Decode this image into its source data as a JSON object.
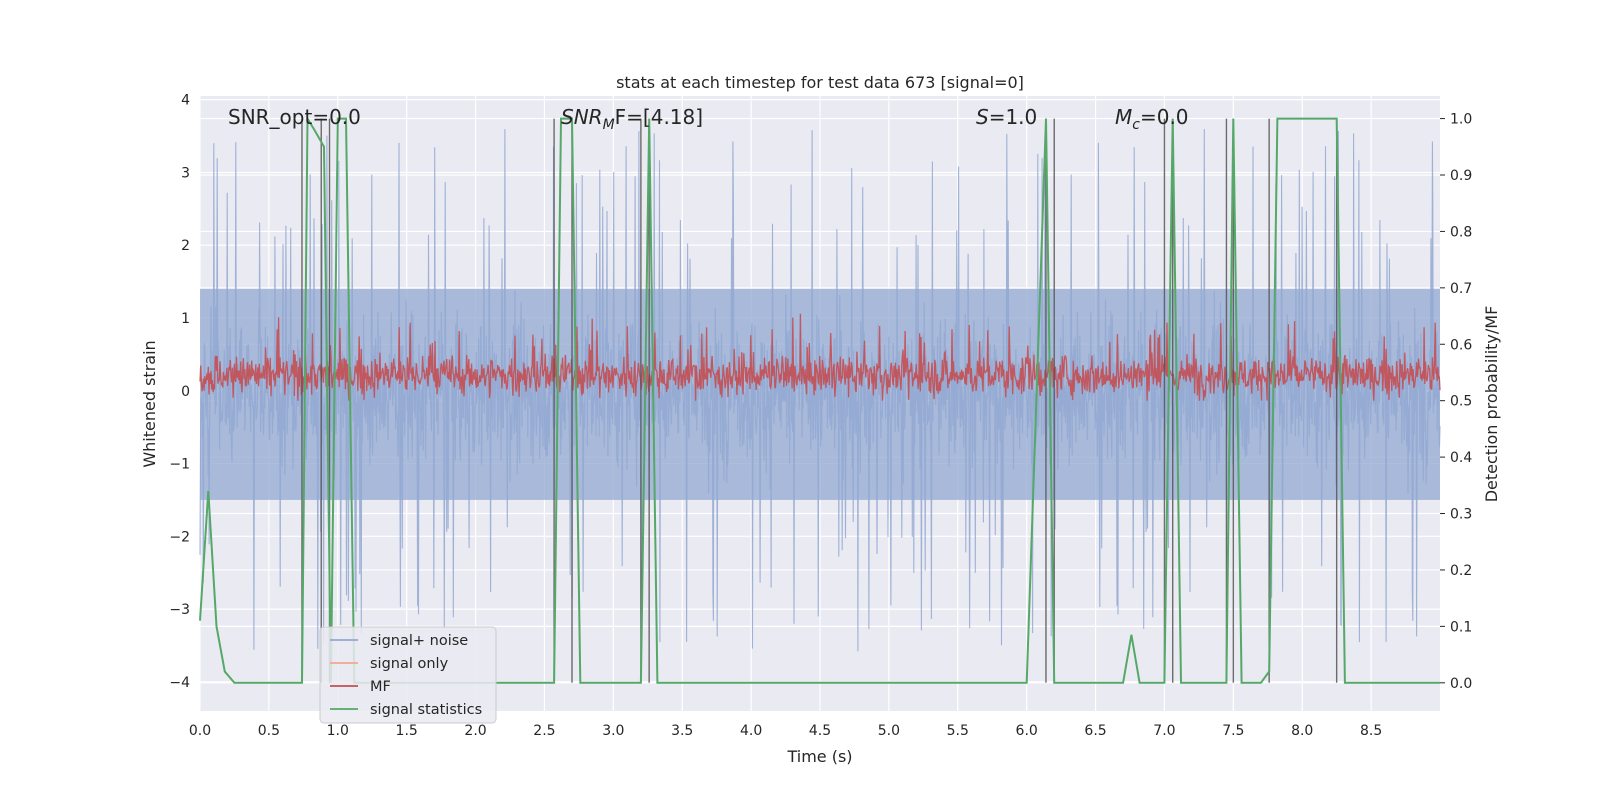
{
  "chart_data": {
    "type": "line",
    "title": "stats at each timestep for test data 673 [signal=0]",
    "xlabel": "Time (s)",
    "ylabel_left": "Whitened strain",
    "ylabel_right": "Detection probability/MF",
    "xlim": [
      0.0,
      9.0
    ],
    "ylim_left": [
      -4.4,
      4.05
    ],
    "ylim_right": [
      -0.05,
      1.04
    ],
    "x_ticks": [
      0.0,
      0.5,
      1.0,
      1.5,
      2.0,
      2.5,
      3.0,
      3.5,
      4.0,
      4.5,
      5.0,
      5.5,
      6.0,
      6.5,
      7.0,
      7.5,
      8.0,
      8.5
    ],
    "x_tick_labels": [
      "0.0",
      "0.5",
      "1.0",
      "1.5",
      "2.0",
      "2.5",
      "3.0",
      "3.5",
      "4.0",
      "4.5",
      "5.0",
      "5.5",
      "6.0",
      "6.5",
      "7.0",
      "7.5",
      "8.0",
      "8.5"
    ],
    "y_left_ticks": [
      -4,
      -3,
      -2,
      -1,
      0,
      1,
      2,
      3,
      4
    ],
    "y_left_tick_labels": [
      "−4",
      "−3",
      "−2",
      "−1",
      "0",
      "1",
      "2",
      "3",
      "4"
    ],
    "y_right_ticks": [
      0.0,
      0.1,
      0.2,
      0.3,
      0.4,
      0.5,
      0.6,
      0.7,
      0.8,
      0.9,
      1.0
    ],
    "y_right_tick_labels": [
      "0.0",
      "0.1",
      "0.2",
      "0.3",
      "0.4",
      "0.5",
      "0.6",
      "0.7",
      "0.8",
      "0.9",
      "1.0"
    ],
    "annotations": [
      {
        "text": "SNR_opt=0.0",
        "x": 0.2
      },
      {
        "text_main": "SNR",
        "text_sub": "M",
        "text_tail": "F=[4.18]",
        "x": 2.6
      },
      {
        "text_main": "S",
        "text_tail": "=1.0",
        "x": 5.6
      },
      {
        "text_main": "M",
        "text_sub": "c",
        "text_tail": "=0.0",
        "x": 6.6
      }
    ],
    "legend": {
      "placement": "lower-left",
      "entries": [
        {
          "label": "signal+ noise",
          "color": "#92a8d1"
        },
        {
          "label": "signal only",
          "color": "#f0a98c"
        },
        {
          "label": "MF",
          "color": "#c44e52"
        },
        {
          "label": "signal statistics",
          "color": "#55a868"
        }
      ]
    },
    "series": [
      {
        "name": "signal+ noise",
        "axis": "left",
        "color": "#92a8d1",
        "description": "noise band approx ±1.4 with spikes to about ±3.6"
      },
      {
        "name": "MF",
        "axis": "right",
        "color": "#c44e52",
        "description": "approx 0.5 to 0.6 throughout"
      },
      {
        "name": "signal statistics",
        "axis": "right",
        "color": "#55a868",
        "x": [
          0.0,
          0.06,
          0.12,
          0.18,
          0.25,
          0.5,
          0.74,
          0.78,
          0.83,
          0.9,
          0.95,
          1.0,
          1.06,
          1.12,
          1.3,
          2.0,
          2.57,
          2.62,
          2.7,
          2.76,
          3.0,
          3.2,
          3.26,
          3.32,
          4.0,
          5.0,
          6.0,
          6.14,
          6.2,
          6.26,
          6.5,
          6.7,
          6.76,
          6.82,
          7.0,
          7.06,
          7.12,
          7.45,
          7.5,
          7.56,
          7.7,
          7.76,
          7.82,
          8.25,
          8.31,
          9.0
        ],
        "y": [
          0.11,
          0.34,
          0.1,
          0.02,
          0.0,
          0.0,
          0.0,
          1.0,
          0.98,
          0.95,
          0.0,
          1.0,
          1.0,
          0.0,
          0.0,
          0.0,
          0.0,
          1.0,
          1.0,
          0.0,
          0.0,
          0.0,
          1.0,
          0.0,
          0.0,
          0.0,
          0.0,
          1.0,
          0.0,
          0.0,
          0.0,
          0.0,
          0.085,
          0.0,
          0.0,
          1.0,
          0.0,
          0.0,
          1.0,
          0.0,
          0.0,
          0.02,
          1.0,
          1.0,
          0.0,
          0.0
        ]
      }
    ],
    "event_lines_x": [
      0.74,
      0.88,
      0.94,
      2.57,
      2.7,
      3.2,
      3.26,
      6.14,
      6.2,
      7.0,
      7.06,
      7.45,
      7.5,
      7.76,
      8.25
    ]
  }
}
